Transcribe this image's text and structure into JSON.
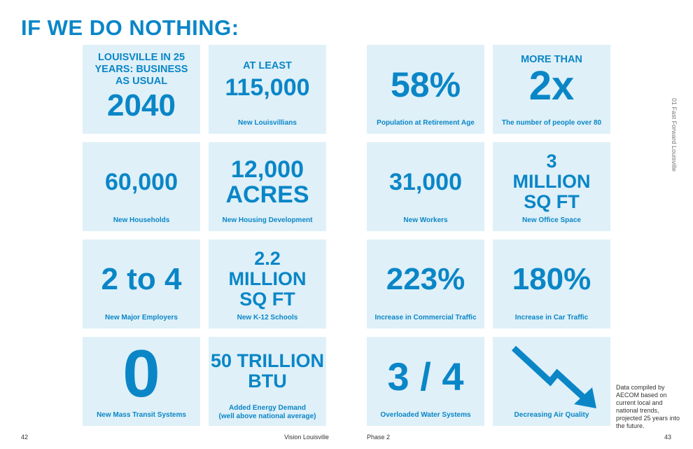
{
  "header": {
    "title": "IF WE DO NOTHING:"
  },
  "tiles": {
    "t1": {
      "kicker": "LOUISVILLE IN 25 YEARS: BUSINESS AS USUAL",
      "value": "2040"
    },
    "t2": {
      "kicker": "AT LEAST",
      "value": "115,000",
      "caption": "New Louisvillians"
    },
    "t3": {
      "value": "58%",
      "caption": "Population at Retirement Age"
    },
    "t4": {
      "kicker": "MORE THAN",
      "value": "2x",
      "caption": "The number of people over 80"
    },
    "t5": {
      "value": "60,000",
      "caption": "New Households"
    },
    "t6": {
      "value_line1": "12,000",
      "value_line2": "ACRES",
      "caption": "New Housing Development"
    },
    "t7": {
      "value": "31,000",
      "caption": "New Workers"
    },
    "t8": {
      "value_line1": "3",
      "value_line2": "MILLION",
      "value_line3": "SQ FT",
      "caption": "New Office Space"
    },
    "t9": {
      "value": "2 to 4",
      "caption": "New Major Employers"
    },
    "t10": {
      "value_line1": "2.2",
      "value_line2": "MILLION",
      "value_line3": "SQ FT",
      "caption": "New K-12 Schools"
    },
    "t11": {
      "value": "223%",
      "caption": "Increase in Commercial Traffic"
    },
    "t12": {
      "value": "180%",
      "caption": "Increase in Car Traffic"
    },
    "t13": {
      "value": "0",
      "caption": "New Mass Transit Systems"
    },
    "t14": {
      "value_line1": "50 TRILLION",
      "value_line2": "BTU",
      "caption_line1": "Added Energy Demand",
      "caption_line2": "(well above national average)"
    },
    "t15": {
      "value": "3 / 4",
      "caption": "Overloaded Water Systems"
    },
    "t16": {
      "icon": "down-trend-arrow-icon",
      "caption": "Decreasing Air Quality"
    }
  },
  "side_label": "01 Fast Forward Louisville",
  "footnote": "Data compiled by AECOM based on current local and national trends, projected 25 years into the future.",
  "footer": {
    "left_page": "42",
    "left_title": "Vision Louisville",
    "right_title": "Phase 2",
    "right_page": "43"
  },
  "colors": {
    "accent": "#0a86c7",
    "tile_bg": "#dff0f8"
  }
}
